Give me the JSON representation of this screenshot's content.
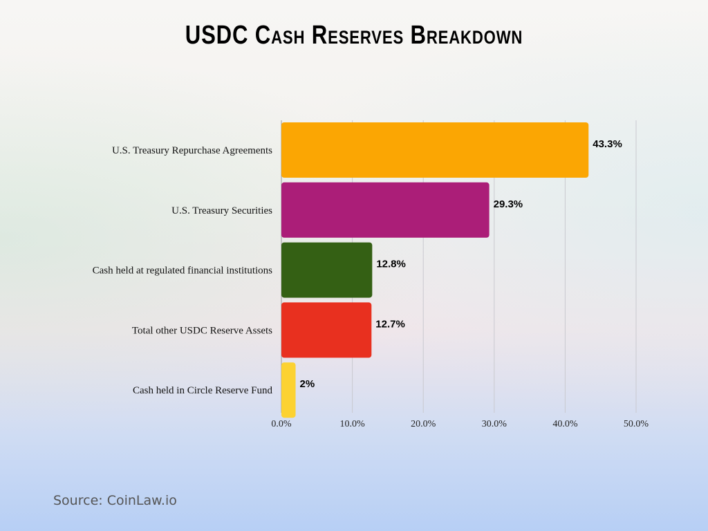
{
  "chart_data": {
    "type": "bar",
    "orientation": "horizontal",
    "title": "USDC Cash Reserves Breakdown",
    "categories": [
      "U.S. Treasury Repurchase Agreements",
      "U.S. Treasury Securities",
      "Cash held at regulated financial institutions",
      "Total other USDC Reserve Assets",
      "Cash held in Circle Reserve Fund"
    ],
    "values": [
      43.3,
      29.3,
      12.8,
      12.7,
      2
    ],
    "data_labels": [
      "43.3%",
      "29.3%",
      "12.8%",
      "12.7%",
      "2%"
    ],
    "colors": [
      "#fba603",
      "#ab1e78",
      "#346014",
      "#e8301f",
      "#fcd232"
    ],
    "xlim": [
      0,
      50
    ],
    "xticks": [
      0,
      10,
      20,
      30,
      40,
      50
    ],
    "xtick_labels": [
      "0.0%",
      "10.0%",
      "20.0%",
      "30.0%",
      "40.0%",
      "50.0%"
    ],
    "xlabel": "",
    "ylabel": "",
    "grid": "vertical",
    "legend": "none"
  },
  "source": "Source: CoinLaw.io"
}
